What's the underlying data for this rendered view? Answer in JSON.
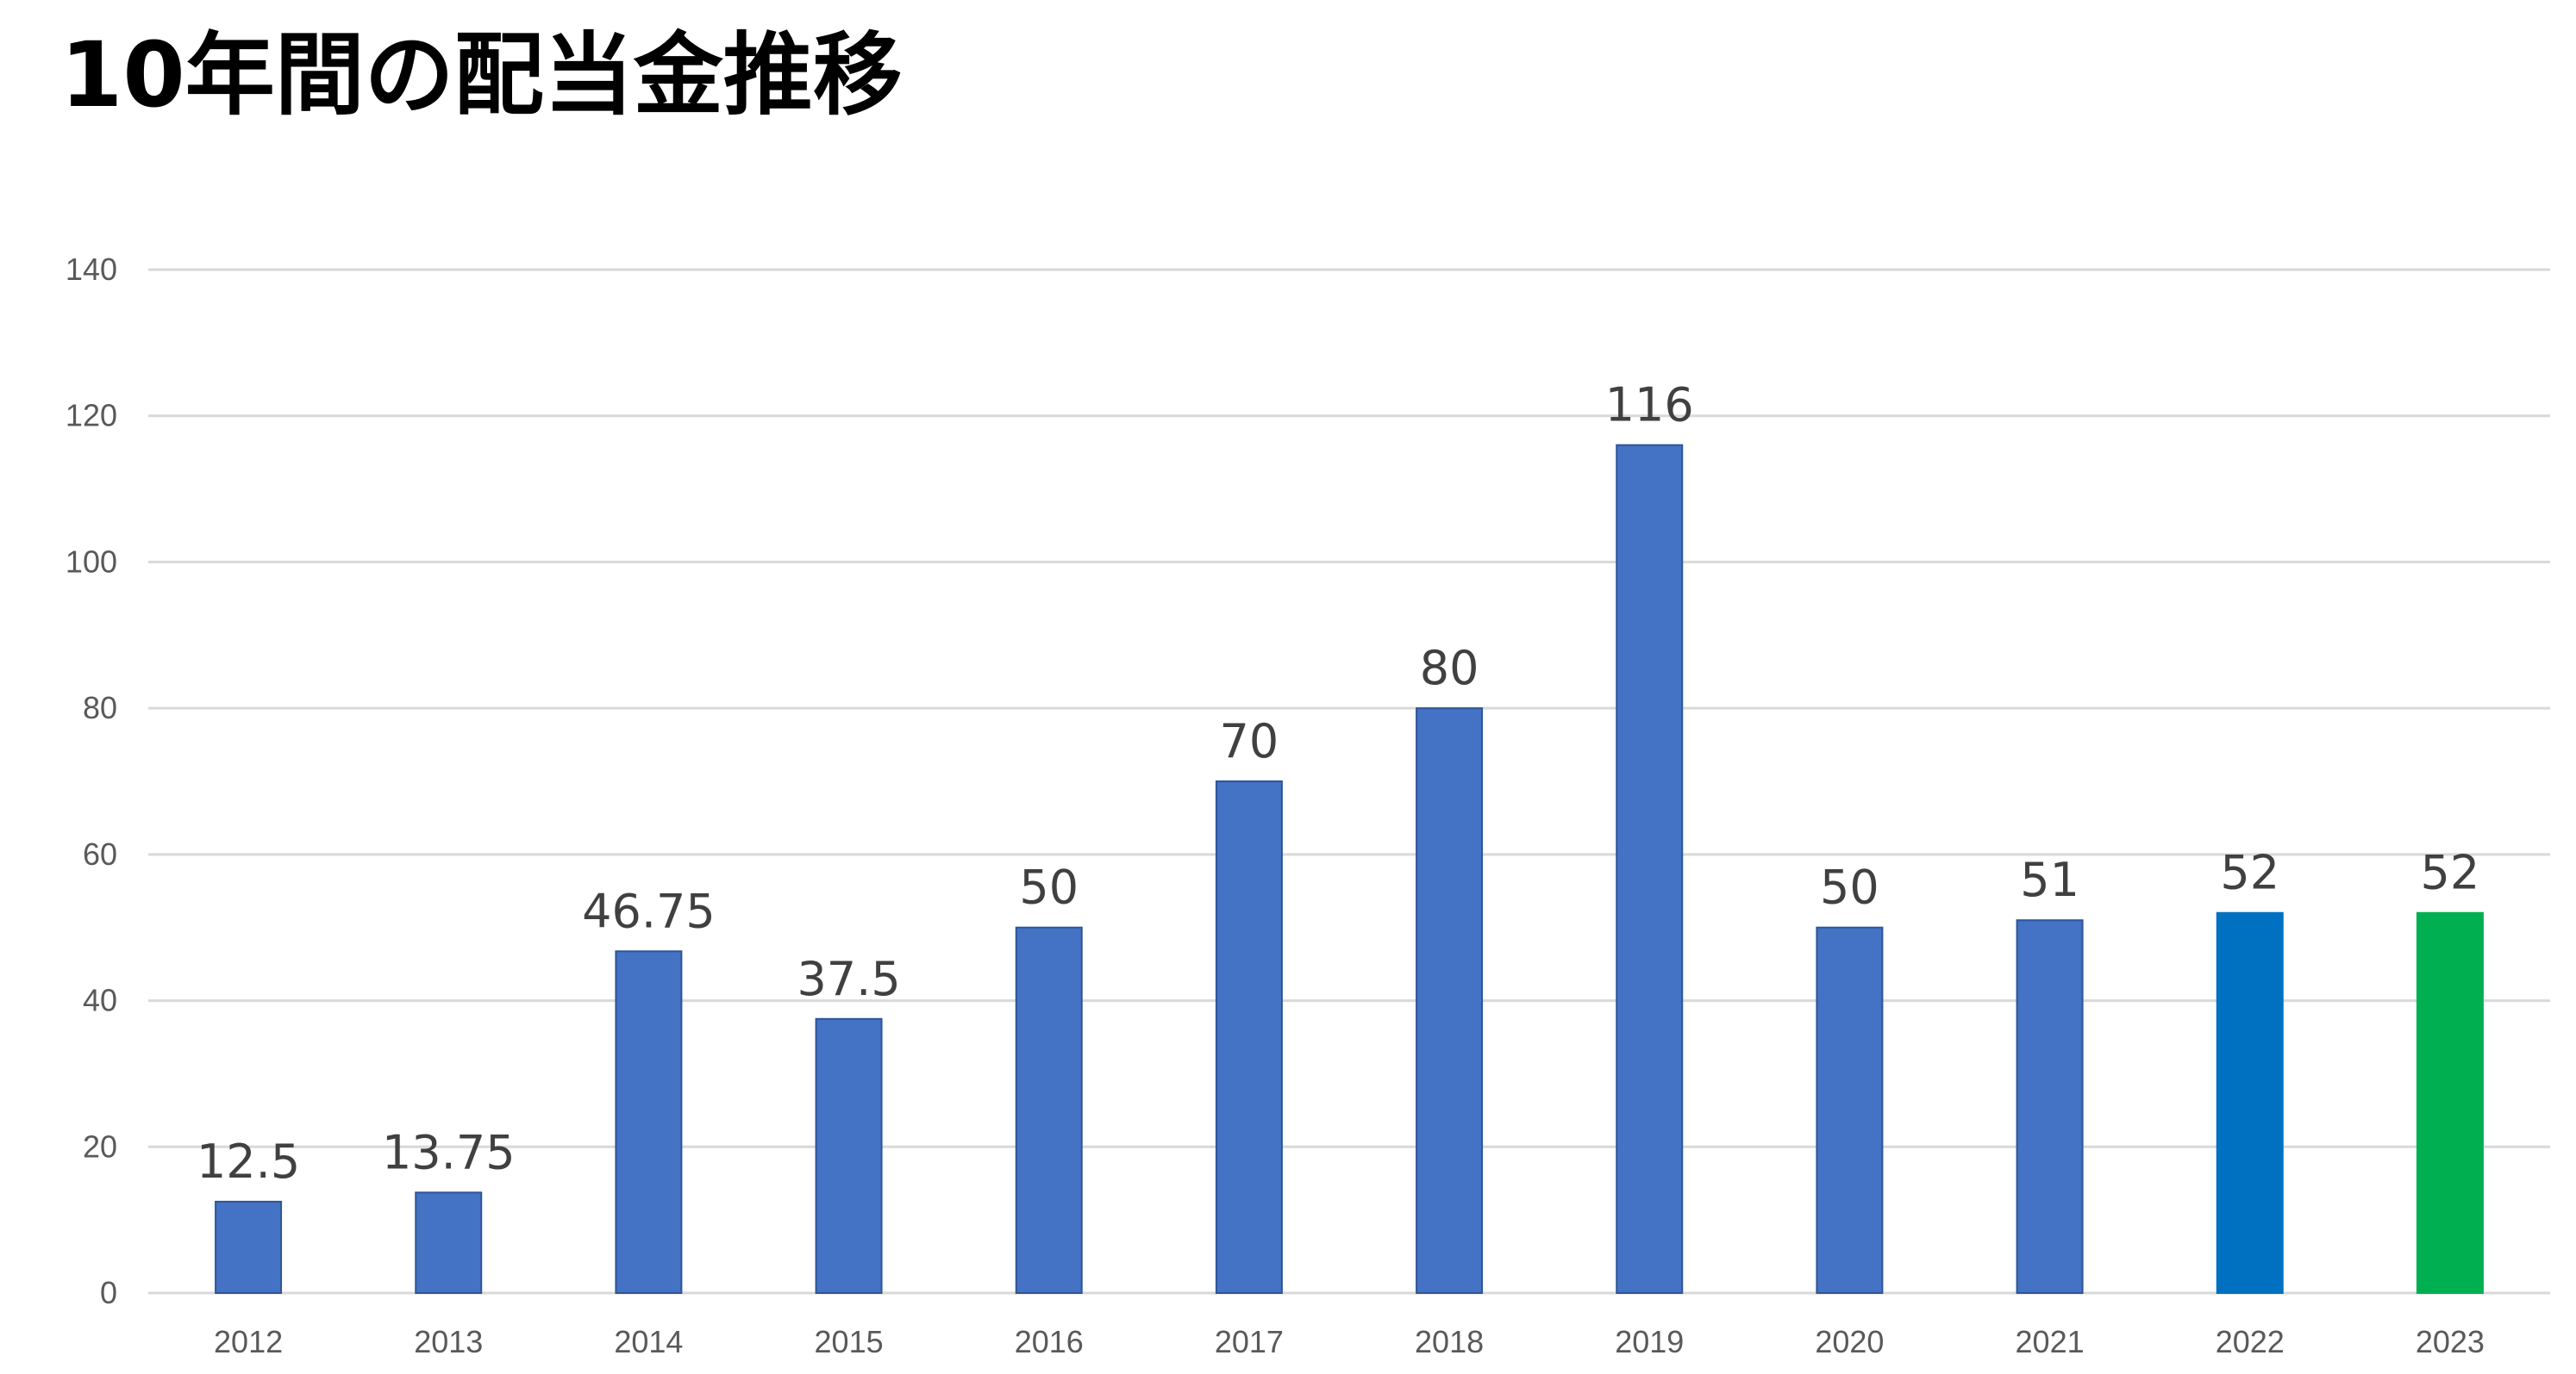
{
  "chart_data": {
    "type": "bar",
    "title": "10年間の配当金推移",
    "xlabel": "",
    "ylabel": "",
    "categories": [
      "2012",
      "2013",
      "2014",
      "2015",
      "2016",
      "2017",
      "2018",
      "2019",
      "2020",
      "2021",
      "2022",
      "2023"
    ],
    "values": [
      12.5,
      13.75,
      46.75,
      37.5,
      50,
      70,
      80,
      116,
      50,
      51,
      52,
      52
    ],
    "value_labels": [
      "12.5",
      "13.75",
      "46.75",
      "37.5",
      "50",
      "70",
      "80",
      "116",
      "50",
      "51",
      "52",
      "52"
    ],
    "bar_colors": [
      "#4472c4",
      "#4472c4",
      "#4472c4",
      "#4472c4",
      "#4472c4",
      "#4472c4",
      "#4472c4",
      "#4472c4",
      "#4472c4",
      "#4472c4",
      "#0070c0",
      "#00b050"
    ],
    "ylim": [
      0,
      140
    ],
    "yticks": [
      0,
      20,
      40,
      60,
      80,
      100,
      120,
      140
    ],
    "grid": true,
    "legend": "none"
  }
}
